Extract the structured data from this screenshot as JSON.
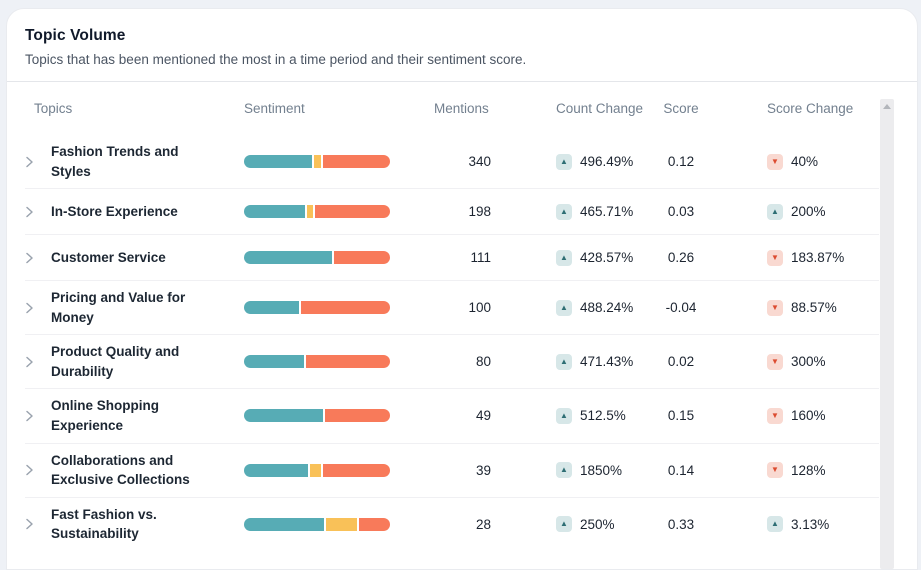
{
  "card": {
    "title": "Topic Volume",
    "subtitle": "Topics that has been mentioned the most in a time period and their sentiment score."
  },
  "table": {
    "columns": {
      "topics": "Topics",
      "sentiment": "Sentiment",
      "mentions": "Mentions",
      "count_change": "Count Change",
      "score": "Score",
      "score_change": "Score Change"
    },
    "rows": [
      {
        "topic": "Fashion Trends and Styles",
        "sentiment": [
          {
            "kind": "positive",
            "pct": 48
          },
          {
            "kind": "neutral",
            "pct": 5
          },
          {
            "kind": "negative",
            "pct": 47
          }
        ],
        "mentions": "340",
        "count_change": {
          "direction": "up",
          "value": "496.49%"
        },
        "score": "0.12",
        "score_change": {
          "direction": "down",
          "value": "40%"
        }
      },
      {
        "topic": "In-Store Experience",
        "sentiment": [
          {
            "kind": "positive",
            "pct": 43
          },
          {
            "kind": "neutral",
            "pct": 4
          },
          {
            "kind": "negative",
            "pct": 53
          }
        ],
        "mentions": "198",
        "count_change": {
          "direction": "up",
          "value": "465.71%"
        },
        "score": "0.03",
        "score_change": {
          "direction": "up",
          "value": "200%"
        }
      },
      {
        "topic": "Customer Service",
        "sentiment": [
          {
            "kind": "positive",
            "pct": 61
          },
          {
            "kind": "negative",
            "pct": 39
          }
        ],
        "mentions": "111",
        "count_change": {
          "direction": "up",
          "value": "428.57%"
        },
        "score": "0.26",
        "score_change": {
          "direction": "down",
          "value": "183.87%"
        }
      },
      {
        "topic": "Pricing and Value for Money",
        "sentiment": [
          {
            "kind": "positive",
            "pct": 38
          },
          {
            "kind": "negative",
            "pct": 62
          }
        ],
        "mentions": "100",
        "count_change": {
          "direction": "up",
          "value": "488.24%"
        },
        "score": "-0.04",
        "score_change": {
          "direction": "down",
          "value": "88.57%"
        }
      },
      {
        "topic": "Product Quality and Durability",
        "sentiment": [
          {
            "kind": "positive",
            "pct": 42
          },
          {
            "kind": "negative",
            "pct": 58
          }
        ],
        "mentions": "80",
        "count_change": {
          "direction": "up",
          "value": "471.43%"
        },
        "score": "0.02",
        "score_change": {
          "direction": "down",
          "value": "300%"
        }
      },
      {
        "topic": "Online Shopping Experience",
        "sentiment": [
          {
            "kind": "positive",
            "pct": 55
          },
          {
            "kind": "negative",
            "pct": 45
          }
        ],
        "mentions": "49",
        "count_change": {
          "direction": "up",
          "value": "512.5%"
        },
        "score": "0.15",
        "score_change": {
          "direction": "down",
          "value": "160%"
        }
      },
      {
        "topic": "Collaborations and Exclusive Collections",
        "sentiment": [
          {
            "kind": "positive",
            "pct": 45
          },
          {
            "kind": "neutral",
            "pct": 8
          },
          {
            "kind": "negative",
            "pct": 47
          }
        ],
        "mentions": "39",
        "count_change": {
          "direction": "up",
          "value": "1850%"
        },
        "score": "0.14",
        "score_change": {
          "direction": "down",
          "value": "128%"
        }
      },
      {
        "topic": "Fast Fashion vs. Sustainability",
        "sentiment": [
          {
            "kind": "positive",
            "pct": 56
          },
          {
            "kind": "neutral",
            "pct": 22
          },
          {
            "kind": "negative",
            "pct": 22
          }
        ],
        "mentions": "28",
        "count_change": {
          "direction": "up",
          "value": "250%"
        },
        "score": "0.33",
        "score_change": {
          "direction": "up",
          "value": "3.13%"
        }
      }
    ]
  },
  "colors": {
    "sentiment": {
      "positive": "#57acb5",
      "neutral": "#f9c158",
      "negative": "#f87a5a"
    },
    "badge_up_bg": "#d7e7e8",
    "badge_up_fg": "#2e6e74",
    "badge_down_bg": "#f9d9d1",
    "badge_down_fg": "#dc4b30"
  },
  "icons": {
    "row_expand": "chevron-right-icon",
    "mentions_sort": "sort-icon",
    "up_arrow": "▲",
    "down_arrow": "▼"
  }
}
